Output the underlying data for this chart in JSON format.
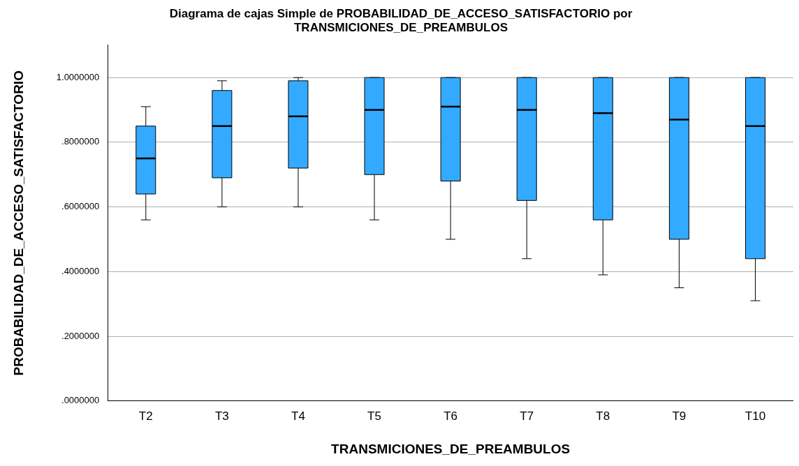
{
  "chart_data": {
    "type": "box",
    "title": "Diagrama de cajas Simple de PROBABILIDAD_DE_ACCESO_SATISFACTORIO por TRANSMICIONES_DE_PREAMBULOS",
    "xlabel": "TRANSMICIONES_DE_PREAMBULOS",
    "ylabel": "PROBABILIDAD_DE_ACCESO_SATISFACTORIO",
    "categories": [
      "T2",
      "T3",
      "T4",
      "T5",
      "T6",
      "T7",
      "T8",
      "T9",
      "T10"
    ],
    "boxes": [
      {
        "low": 0.56,
        "q1": 0.64,
        "median": 0.75,
        "q3": 0.85,
        "high": 0.91
      },
      {
        "low": 0.6,
        "q1": 0.69,
        "median": 0.85,
        "q3": 0.96,
        "high": 0.99
      },
      {
        "low": 0.6,
        "q1": 0.72,
        "median": 0.88,
        "q3": 0.99,
        "high": 1.0
      },
      {
        "low": 0.56,
        "q1": 0.7,
        "median": 0.9,
        "q3": 1.0,
        "high": 1.0
      },
      {
        "low": 0.5,
        "q1": 0.68,
        "median": 0.91,
        "q3": 1.0,
        "high": 1.0
      },
      {
        "low": 0.44,
        "q1": 0.62,
        "median": 0.9,
        "q3": 1.0,
        "high": 1.0
      },
      {
        "low": 0.39,
        "q1": 0.56,
        "median": 0.89,
        "q3": 1.0,
        "high": 1.0
      },
      {
        "low": 0.35,
        "q1": 0.5,
        "median": 0.87,
        "q3": 1.0,
        "high": 1.0
      },
      {
        "low": 0.31,
        "q1": 0.44,
        "median": 0.85,
        "q3": 1.0,
        "high": 1.0
      }
    ],
    "color": "#33aaff",
    "ylim": [
      0,
      1.1
    ],
    "yticks": [
      {
        "value": 0,
        "label": ".0000000"
      },
      {
        "value": 0.2,
        "label": ".2000000"
      },
      {
        "value": 0.4,
        "label": ".4000000"
      },
      {
        "value": 0.6,
        "label": ".6000000"
      },
      {
        "value": 0.8,
        "label": ".8000000"
      },
      {
        "value": 1,
        "label": "1.0000000"
      }
    ],
    "grid": "y"
  }
}
